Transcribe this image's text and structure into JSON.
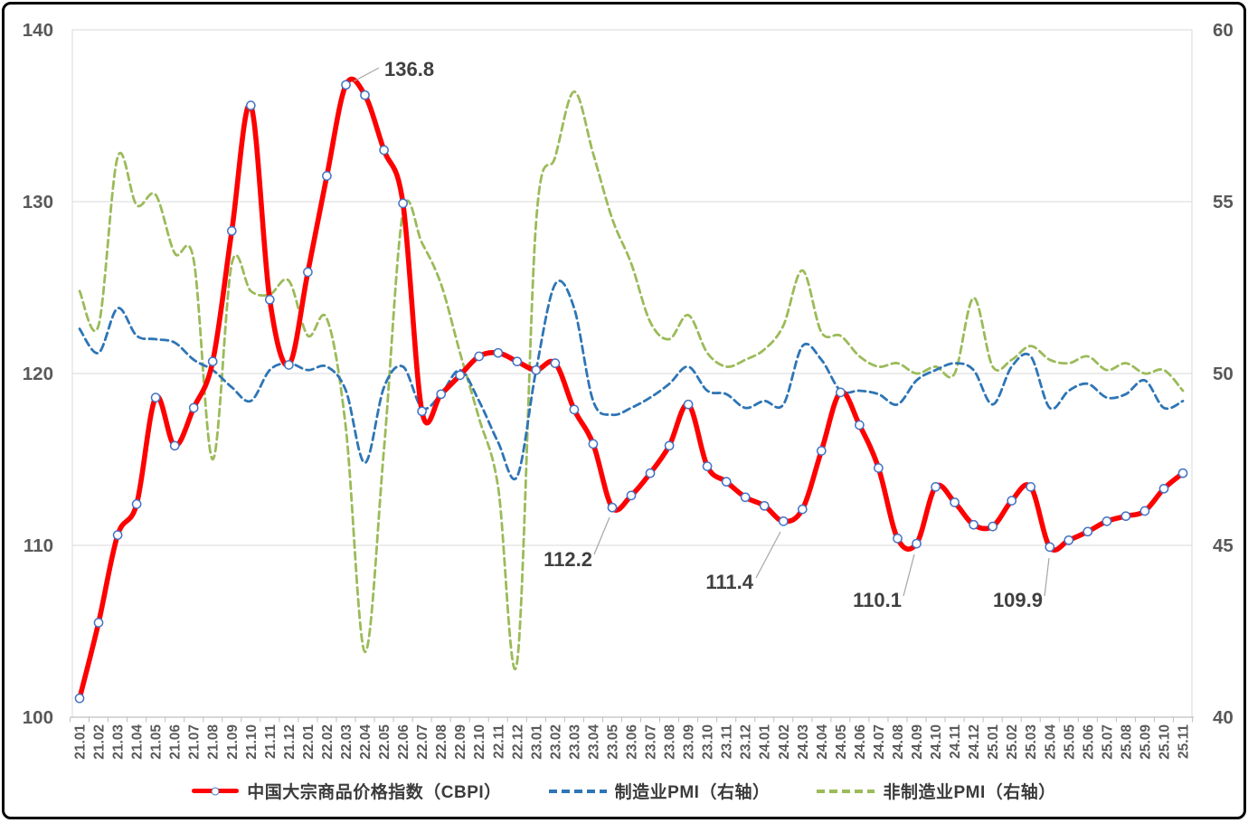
{
  "frame": {
    "background": "#FFFFFF",
    "border_color": "#000000"
  },
  "chart_data": {
    "type": "line",
    "x_labels": [
      "21.01",
      "21.02",
      "21.03",
      "21.04",
      "21.05",
      "21.06",
      "21.07",
      "21.08",
      "21.09",
      "21.10",
      "21.11",
      "21.12",
      "22.01",
      "22.02",
      "22.03",
      "22.04",
      "22.05",
      "22.06",
      "22.07",
      "22.08",
      "22.09",
      "22.10",
      "22.11",
      "22.12",
      "23.01",
      "23.02",
      "23.03",
      "23.04",
      "23.05",
      "23.06",
      "23.07",
      "23.08",
      "23.09",
      "23.10",
      "23.11",
      "23.12",
      "24.01",
      "24.02",
      "24.03",
      "24.04",
      "24.05",
      "24.06",
      "24.07",
      "24.08",
      "24.09",
      "24.10",
      "24.11",
      "24.12",
      "25.01",
      "25.02",
      "25.03",
      "25.04",
      "25.05",
      "25.06",
      "25.07",
      "25.08",
      "25.09",
      "25.10",
      "25.11"
    ],
    "series": [
      {
        "name": "中国大宗商品价格指数（CBPI）",
        "axis": "left",
        "color": "#FF0000",
        "style": "solid",
        "marker": "circle",
        "values": [
          101.1,
          105.5,
          110.6,
          112.4,
          118.6,
          115.8,
          118.0,
          120.7,
          128.3,
          135.6,
          124.3,
          120.5,
          125.9,
          131.5,
          136.8,
          136.2,
          133.0,
          129.9,
          117.8,
          118.8,
          119.9,
          121.0,
          121.2,
          120.7,
          120.2,
          120.6,
          117.9,
          115.9,
          112.2,
          112.9,
          114.2,
          115.8,
          118.2,
          114.6,
          113.7,
          112.8,
          112.3,
          111.4,
          112.1,
          115.5,
          118.9,
          117.0,
          114.5,
          110.4,
          110.1,
          113.4,
          112.5,
          111.2,
          111.1,
          112.6,
          113.4,
          109.9,
          110.3,
          110.8,
          111.4,
          111.7,
          112.0,
          113.3,
          114.2
        ]
      },
      {
        "name": "制造业PMI（右轴）",
        "axis": "right",
        "color": "#2E75B6",
        "style": "dashed",
        "marker": "none",
        "values": [
          51.3,
          50.6,
          51.9,
          51.1,
          51.0,
          50.9,
          50.4,
          50.1,
          49.6,
          49.2,
          50.1,
          50.3,
          50.1,
          50.2,
          49.5,
          47.4,
          49.6,
          50.2,
          49.0,
          49.4,
          50.1,
          49.2,
          48.0,
          47.0,
          50.1,
          52.6,
          51.9,
          49.2,
          48.8,
          49.0,
          49.3,
          49.7,
          50.2,
          49.5,
          49.4,
          49.0,
          49.2,
          49.1,
          50.8,
          50.4,
          49.5,
          49.5,
          49.4,
          49.1,
          49.8,
          50.1,
          50.3,
          50.1,
          49.1,
          50.2,
          50.5,
          49.0,
          49.5,
          49.7,
          49.3,
          49.4,
          49.8,
          49.0,
          49.2
        ]
      },
      {
        "name": "非制造业PMI（右轴）",
        "axis": "right",
        "color": "#9BBB59",
        "style": "dashed",
        "marker": "none",
        "values": [
          52.4,
          51.4,
          56.3,
          54.9,
          55.2,
          53.5,
          53.3,
          47.5,
          53.2,
          52.4,
          52.3,
          52.7,
          51.1,
          51.6,
          48.4,
          41.9,
          47.8,
          54.7,
          53.8,
          52.6,
          50.6,
          48.7,
          46.7,
          41.6,
          54.4,
          56.3,
          58.2,
          56.4,
          54.5,
          53.2,
          51.5,
          51.0,
          51.7,
          50.6,
          50.2,
          50.4,
          50.7,
          51.4,
          53.0,
          51.2,
          51.1,
          50.5,
          50.2,
          50.3,
          50.0,
          50.2,
          50.0,
          52.2,
          50.2,
          50.4,
          50.8,
          50.4,
          50.3,
          50.5,
          50.1,
          50.3,
          50.0,
          50.1,
          49.5
        ]
      }
    ],
    "left_axis": {
      "min": 100,
      "max": 140,
      "ticks": [
        140,
        130,
        120,
        110,
        100
      ]
    },
    "right_axis": {
      "min": 40,
      "max": 60,
      "ticks": [
        60,
        55,
        50,
        45,
        40
      ]
    },
    "grid": true,
    "legend_position": "bottom",
    "annotations": [
      {
        "label": "136.8",
        "month": "22.03",
        "value": 136.8,
        "anchor": "start",
        "text": [
          420,
          79
        ],
        "leader": [
          386,
          85,
          414,
          70
        ]
      },
      {
        "label": "112.2",
        "month": "23.05",
        "value": 112.2,
        "anchor": "end",
        "text": [
          650,
          621
        ],
        "leader": [
          669,
          567,
          652,
          608
        ]
      },
      {
        "label": "111.4",
        "month": "24.02",
        "value": 111.4,
        "anchor": "end",
        "text": [
          828,
          646
        ],
        "leader": [
          858,
          583,
          831,
          634
        ]
      },
      {
        "label": "110.1",
        "month": "24.09",
        "value": 110.1,
        "anchor": "end",
        "text": [
          992,
          666
        ],
        "leader": [
          1006,
          608,
          994,
          654
        ]
      },
      {
        "label": "109.9",
        "month": "25.04",
        "value": 109.9,
        "anchor": "end",
        "text": [
          1148,
          666
        ],
        "leader": [
          1155,
          612,
          1150,
          654
        ]
      }
    ],
    "colors": {
      "gridline": "#D9D9D9",
      "plot_border": "#D9D9D9",
      "axis_line": "#BFBFBF",
      "axis_tick": "#BFBFBF",
      "axis_label": "#595959",
      "x_label": "#595959",
      "annotation_text": "#404040",
      "annotation_leader": "#A6A6A6",
      "marker_fill": "#FFFFFF",
      "marker_stroke": "#4472C4"
    }
  }
}
